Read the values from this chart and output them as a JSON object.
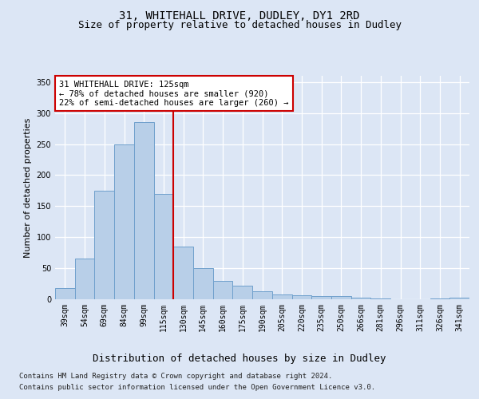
{
  "title_line1": "31, WHITEHALL DRIVE, DUDLEY, DY1 2RD",
  "title_line2": "Size of property relative to detached houses in Dudley",
  "xlabel": "Distribution of detached houses by size in Dudley",
  "ylabel": "Number of detached properties",
  "categories": [
    "39sqm",
    "54sqm",
    "69sqm",
    "84sqm",
    "99sqm",
    "115sqm",
    "130sqm",
    "145sqm",
    "160sqm",
    "175sqm",
    "190sqm",
    "205sqm",
    "220sqm",
    "235sqm",
    "250sqm",
    "266sqm",
    "281sqm",
    "296sqm",
    "311sqm",
    "326sqm",
    "341sqm"
  ],
  "values": [
    18,
    65,
    175,
    250,
    285,
    170,
    85,
    50,
    30,
    22,
    13,
    8,
    7,
    5,
    5,
    2,
    1,
    0,
    0,
    1,
    2
  ],
  "bar_color": "#b8cfe8",
  "bar_edge_color": "#6fa0cc",
  "vline_x": 5.5,
  "vline_color": "#cc0000",
  "annotation_text": "31 WHITEHALL DRIVE: 125sqm\n← 78% of detached houses are smaller (920)\n22% of semi-detached houses are larger (260) →",
  "annotation_box_facecolor": "#ffffff",
  "annotation_box_edgecolor": "#cc0000",
  "ylim": [
    0,
    360
  ],
  "yticks": [
    0,
    50,
    100,
    150,
    200,
    250,
    300,
    350
  ],
  "footer_line1": "Contains HM Land Registry data © Crown copyright and database right 2024.",
  "footer_line2": "Contains public sector information licensed under the Open Government Licence v3.0.",
  "background_color": "#dce6f5",
  "plot_bg_color": "#dce6f5",
  "grid_color": "#ffffff",
  "title_fontsize": 10,
  "subtitle_fontsize": 9,
  "ylabel_fontsize": 8,
  "xlabel_fontsize": 9,
  "tick_fontsize": 7,
  "annot_fontsize": 7.5,
  "footer_fontsize": 6.5
}
